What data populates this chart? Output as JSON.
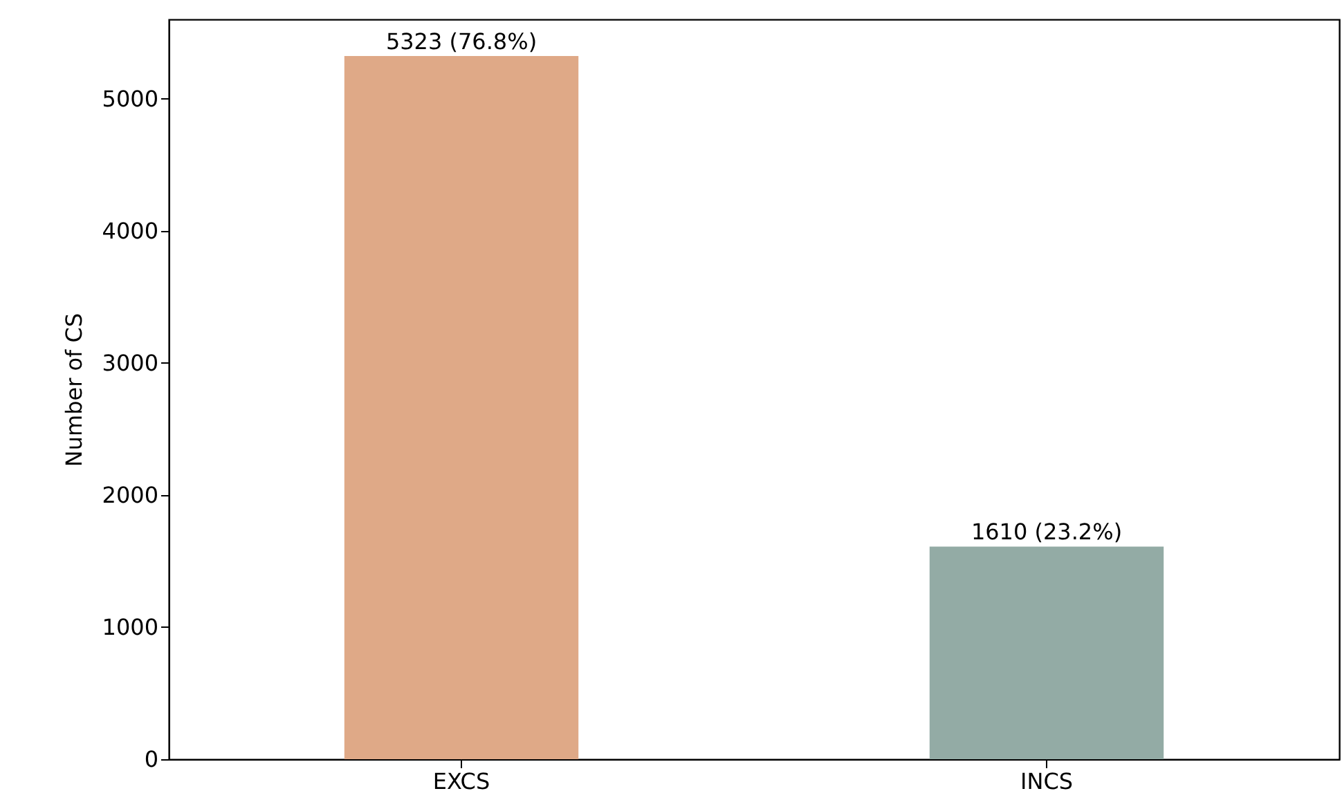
{
  "chart_data": {
    "type": "bar",
    "ylabel": "Number of CS",
    "categories": [
      "EXCS",
      "INCS"
    ],
    "values": [
      5323,
      1610
    ],
    "colors": [
      "#dfa987",
      "#93aba5"
    ],
    "value_labels": [
      "5323 (76.8%)",
      "1610 (23.2%)"
    ],
    "ylim": [
      0,
      5600
    ],
    "yticks": [
      0,
      1000,
      2000,
      3000,
      4000,
      5000
    ],
    "grid": false
  }
}
